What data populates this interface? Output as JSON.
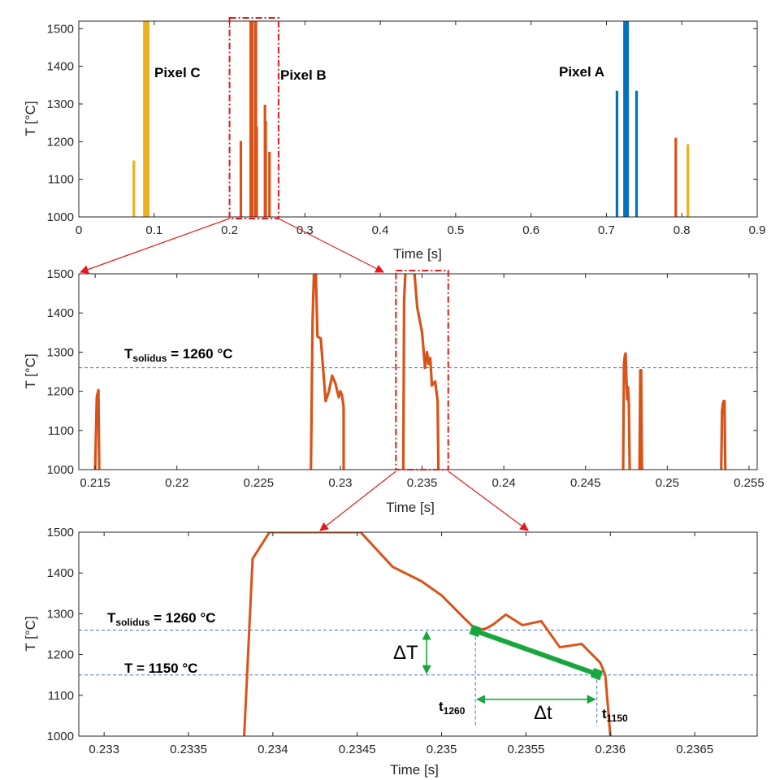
{
  "chart_data": [
    {
      "type": "line",
      "panel": "top",
      "xlabel": "Time [s]",
      "ylabel": "T [°C]",
      "xlim": [
        0,
        0.9
      ],
      "ylim": [
        1000,
        1520
      ],
      "xticks": [
        "0",
        "0.1",
        "0.2",
        "0.3",
        "0.4",
        "0.5",
        "0.6",
        "0.7",
        "0.8",
        "0.9"
      ],
      "yticks": [
        "1000",
        "1100",
        "1200",
        "1300",
        "1400",
        "1500"
      ],
      "grid": false,
      "annotations": [
        "Pixel C",
        "Pixel B",
        "Pixel A"
      ],
      "series": [
        {
          "color": "#EDB120",
          "spikes": [
            [
              0.073,
              1150
            ],
            [
              0.087,
              1520
            ],
            [
              0.088,
              1520
            ],
            [
              0.089,
              1520
            ],
            [
              0.09,
              1520
            ],
            [
              0.091,
              1520
            ],
            [
              0.092,
              1520
            ],
            [
              0.808,
              1193
            ]
          ]
        },
        {
          "color": "#D95319",
          "spikes": [
            [
              0.215,
              1202
            ],
            [
              0.228,
              1520
            ],
            [
              0.229,
              1520
            ],
            [
              0.23,
              1520
            ],
            [
              0.234,
              1520
            ],
            [
              0.235,
              1520
            ],
            [
              0.236,
              1240
            ],
            [
              0.247,
              1298
            ],
            [
              0.248,
              1254
            ],
            [
              0.253,
              1173
            ],
            [
              0.792,
              1210
            ]
          ]
        },
        {
          "color": "#0072BD",
          "spikes": [
            [
              0.714,
              1335
            ],
            [
              0.724,
              1520
            ],
            [
              0.725,
              1520
            ],
            [
              0.726,
              1520
            ],
            [
              0.727,
              1520
            ],
            [
              0.728,
              1520
            ],
            [
              0.74,
              1335
            ]
          ]
        }
      ],
      "zoom_box_x": [
        0.2,
        0.265
      ]
    },
    {
      "type": "line",
      "panel": "middle",
      "xlabel": "Time [s]",
      "ylabel": "T [°C]",
      "xlim": [
        0.214,
        0.2555
      ],
      "ylim": [
        1000,
        1500
      ],
      "xticks": [
        "0.215",
        "0.22",
        "0.225",
        "0.23",
        "0.235",
        "0.24",
        "0.245",
        "0.25",
        "0.255"
      ],
      "yticks": [
        "1000",
        "1100",
        "1200",
        "1300",
        "1400",
        "1500"
      ],
      "grid": false,
      "reference_lines": [
        {
          "y": 1260,
          "label_main": "T",
          "label_sub": "solidus",
          "label_tail": " = 1260 °C"
        }
      ],
      "series": [
        {
          "color": "#D95319",
          "segments": [
            [
              [
                0.215,
                1000
              ],
              [
                0.2151,
                1185
              ],
              [
                0.21515,
                1195
              ],
              [
                0.2152,
                1203
              ],
              [
                0.21525,
                1000
              ]
            ],
            [
              [
                0.2282,
                1000
              ],
              [
                0.2283,
                1380
              ],
              [
                0.2284,
                1520
              ],
              [
                0.2285,
                1500
              ],
              [
                0.2286,
                1340
              ],
              [
                0.2288,
                1335
              ],
              [
                0.2291,
                1175
              ],
              [
                0.2293,
                1200
              ],
              [
                0.2295,
                1240
              ],
              [
                0.2297,
                1220
              ],
              [
                0.2299,
                1185
              ],
              [
                0.23,
                1200
              ],
              [
                0.2301,
                1190
              ],
              [
                0.2302,
                1160
              ],
              [
                0.2302,
                1000
              ]
            ],
            [
              [
                0.23385,
                1000
              ],
              [
                0.2339,
                1435
              ],
              [
                0.234,
                1520
              ],
              [
                0.2345,
                1520
              ],
              [
                0.2347,
                1415
              ],
              [
                0.235,
                1350
              ],
              [
                0.23518,
                1260
              ],
              [
                0.2353,
                1300
              ],
              [
                0.2354,
                1270
              ],
              [
                0.2355,
                1285
              ],
              [
                0.2356,
                1215
              ],
              [
                0.2358,
                1225
              ],
              [
                0.23595,
                1175
              ],
              [
                0.236,
                1000
              ]
            ],
            [
              [
                0.2473,
                1000
              ],
              [
                0.24735,
                1270
              ],
              [
                0.2474,
                1290
              ],
              [
                0.24745,
                1297
              ],
              [
                0.2475,
                1230
              ],
              [
                0.24755,
                1180
              ],
              [
                0.2476,
                1210
              ],
              [
                0.24765,
                1165
              ],
              [
                0.2477,
                1000
              ]
            ],
            [
              [
                0.2483,
                1000
              ],
              [
                0.24835,
                1254
              ],
              [
                0.2484,
                1254
              ],
              [
                0.24845,
                1000
              ]
            ],
            [
              [
                0.2533,
                1000
              ],
              [
                0.25335,
                1150
              ],
              [
                0.2534,
                1168
              ],
              [
                0.25345,
                1175
              ],
              [
                0.2535,
                1175
              ],
              [
                0.25355,
                1000
              ]
            ]
          ]
        }
      ],
      "zoom_box_x": [
        0.2334,
        0.2366
      ]
    },
    {
      "type": "line",
      "panel": "bottom",
      "xlabel": "Time [s]",
      "ylabel": "T [°C]",
      "xlim": [
        0.23285,
        0.23687
      ],
      "ylim": [
        1000,
        1500
      ],
      "xticks": [
        "0.233",
        "0.2335",
        "0.234",
        "0.2345",
        "0.235",
        "0.2355",
        "0.236",
        "0.2365"
      ],
      "yticks": [
        "1000",
        "1100",
        "1200",
        "1300",
        "1400",
        "1500"
      ],
      "grid": false,
      "reference_lines": [
        {
          "y": 1260,
          "label_main": "T",
          "label_sub": "solidus",
          "label_tail": " = 1260 °C"
        },
        {
          "y": 1150,
          "label_main": "T = 1150 °C",
          "label_sub": "",
          "label_tail": ""
        }
      ],
      "series": [
        {
          "color": "#D95319",
          "points": [
            [
              0.23383,
              1000
            ],
            [
              0.23388,
              1435
            ],
            [
              0.23398,
              1500
            ],
            [
              0.23452,
              1500
            ],
            [
              0.23471,
              1415
            ],
            [
              0.23488,
              1380
            ],
            [
              0.235,
              1345
            ],
            [
              0.23512,
              1295
            ],
            [
              0.23521,
              1258
            ],
            [
              0.23527,
              1265
            ],
            [
              0.23531,
              1275
            ],
            [
              0.23538,
              1298
            ],
            [
              0.23548,
              1272
            ],
            [
              0.23559,
              1282
            ],
            [
              0.2357,
              1218
            ],
            [
              0.23583,
              1226
            ],
            [
              0.23594,
              1180
            ],
            [
              0.23597,
              1150
            ],
            [
              0.236,
              1000
            ]
          ]
        }
      ],
      "cooling_segment": {
        "color": "#18A73D",
        "x": [
          0.2352,
          0.23592
        ],
        "y": [
          1258,
          1152
        ]
      },
      "annotations": {
        "delta_T": "ΔT",
        "delta_t": "Δt",
        "t1260_main": "t",
        "t1260_sub": "1260",
        "t1150_main": "t",
        "t1150_sub": "1150"
      }
    }
  ],
  "colors": {
    "pixel_c": "#EDB120",
    "pixel_b": "#D95319",
    "pixel_a": "#0072BD",
    "cooling": "#18A73D",
    "zoom": "#E31A1C",
    "refline": "#4472C4"
  }
}
